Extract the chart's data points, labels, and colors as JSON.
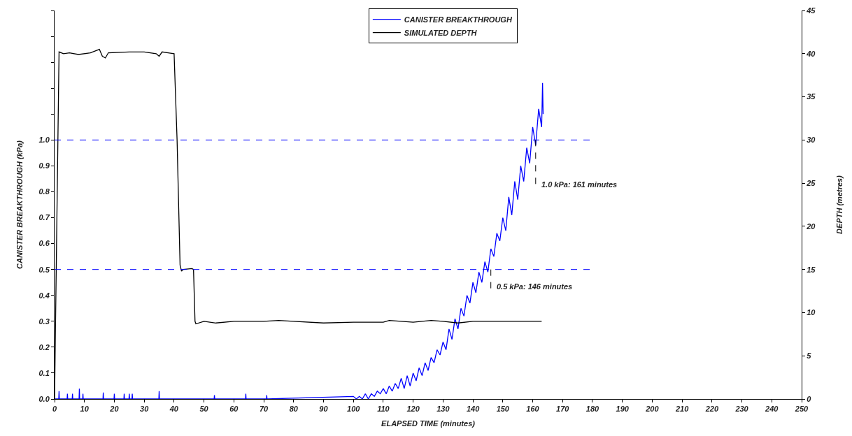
{
  "chart_data": {
    "type": "line",
    "xlabel": "ELAPSED TIME (minutes)",
    "ylabel": "CANISTER BREAKTHROUGH (kPa)",
    "y2label": "DEPTH (metres)",
    "xlim": [
      0,
      250
    ],
    "xticks": [
      0,
      10,
      20,
      30,
      40,
      50,
      60,
      70,
      80,
      90,
      100,
      110,
      120,
      130,
      140,
      150,
      160,
      170,
      180,
      190,
      200,
      210,
      220,
      230,
      240,
      250
    ],
    "ylim": [
      0,
      1.5
    ],
    "yticks": [
      {
        "value": 0,
        "label": "0.0"
      },
      {
        "value": 0.1,
        "label": "0.1"
      },
      {
        "value": 0.2,
        "label": "0.2"
      },
      {
        "value": 0.3,
        "label": "0.3"
      },
      {
        "value": 0.4,
        "label": "0.4"
      },
      {
        "value": 0.5,
        "label": "0.5"
      },
      {
        "value": 0.6,
        "label": "0.6"
      },
      {
        "value": 0.7,
        "label": "0.7"
      },
      {
        "value": 0.8,
        "label": "0.8"
      },
      {
        "value": 0.9,
        "label": "0.9"
      },
      {
        "value": 1,
        "label": "1.0"
      },
      {
        "value": 1.1,
        "label": null
      },
      {
        "value": 1.2,
        "label": null
      },
      {
        "value": 1.3,
        "label": null
      },
      {
        "value": 1.4,
        "label": null
      },
      {
        "value": 1.5,
        "label": null
      }
    ],
    "y2lim": [
      0,
      45
    ],
    "y2ticks": [
      0,
      5,
      10,
      15,
      20,
      25,
      30,
      35,
      40,
      45
    ],
    "grid": false,
    "legend": "top",
    "marker": "none",
    "line_style": "solid",
    "series": [
      {
        "name": "CANISTER BREAKTHROUGH",
        "color": "#0000ff",
        "x": [
          0,
          1.4,
          1.5,
          1.6,
          4.2,
          4.3,
          4.4,
          5.9,
          6,
          6.1,
          8.2,
          8.3,
          8.4,
          9.4,
          9.5,
          9.6,
          16.2,
          16.3,
          16.4,
          19.9,
          20,
          20.1,
          23.2,
          23.3,
          23.4,
          24.9,
          25,
          25.1,
          25.9,
          26,
          26.1,
          34.9,
          35,
          35.1,
          53.4,
          53.5,
          53.6,
          63.9,
          64,
          64.1,
          70.9,
          71,
          71.1,
          100,
          101,
          102,
          103,
          104,
          105,
          106,
          107,
          108,
          109,
          110,
          111,
          112,
          113,
          114,
          115,
          116,
          117,
          118,
          119,
          120,
          121,
          122,
          123,
          124,
          125,
          126,
          127,
          128,
          129,
          130,
          131,
          132,
          133,
          134,
          135,
          136,
          137,
          138,
          139,
          140,
          141,
          142,
          143,
          144,
          145,
          146,
          147,
          148,
          149,
          150,
          151,
          152,
          153,
          154,
          155,
          156,
          157,
          158,
          159,
          160,
          161,
          162,
          163,
          163.3,
          163.5
        ],
        "values": [
          0,
          0,
          0.03,
          0,
          0,
          0.02,
          0,
          0,
          0.02,
          0,
          0,
          0.04,
          0,
          0,
          0.02,
          0,
          0,
          0.025,
          0,
          0,
          0.02,
          0,
          0,
          0.02,
          0,
          0,
          0.02,
          0,
          0,
          0.02,
          0,
          0,
          0.03,
          0,
          0,
          0.015,
          0,
          0,
          0.02,
          0,
          0,
          0.015,
          0,
          0.01,
          0,
          0.01,
          0,
          0.02,
          0,
          0.02,
          0.01,
          0.03,
          0.02,
          0.04,
          0.02,
          0.05,
          0.03,
          0.06,
          0.04,
          0.08,
          0.04,
          0.09,
          0.05,
          0.1,
          0.07,
          0.12,
          0.09,
          0.14,
          0.11,
          0.16,
          0.14,
          0.19,
          0.17,
          0.22,
          0.19,
          0.27,
          0.23,
          0.31,
          0.27,
          0.35,
          0.32,
          0.4,
          0.37,
          0.45,
          0.41,
          0.49,
          0.45,
          0.53,
          0.49,
          0.58,
          0.55,
          0.64,
          0.61,
          0.7,
          0.65,
          0.78,
          0.71,
          0.84,
          0.77,
          0.9,
          0.84,
          0.97,
          0.91,
          1.05,
          0.98,
          1.12,
          1.05,
          1.22,
          1.1
        ]
      },
      {
        "name": "SIMULATED DEPTH",
        "color": "#000000",
        "axis": "y2",
        "x": [
          0,
          1.5,
          3,
          5,
          8,
          12,
          15,
          16,
          17,
          18,
          25,
          30,
          34,
          35,
          36,
          38,
          40,
          41,
          42,
          42.5,
          43,
          46,
          46.5,
          47,
          47.3,
          50,
          54,
          60,
          70,
          75,
          80,
          90,
          100,
          110,
          112,
          120,
          126,
          130,
          135,
          140,
          150,
          163
        ],
        "values": [
          0,
          40.2,
          40,
          40.1,
          39.9,
          40.1,
          40.5,
          39.7,
          39.5,
          40.1,
          40.2,
          40.2,
          40,
          39.7,
          40.2,
          40.1,
          40,
          30,
          15.5,
          14.8,
          15,
          15.1,
          15,
          9,
          8.7,
          9,
          8.8,
          9,
          9,
          9.1,
          9,
          8.8,
          8.9,
          8.9,
          9.1,
          8.9,
          9.1,
          9,
          8.8,
          9,
          9,
          9
        ]
      }
    ],
    "ref_lines": [
      {
        "axis": "y",
        "value": 1,
        "color": "#0000ff",
        "line_style": "dashed"
      },
      {
        "axis": "y",
        "value": 0.5,
        "color": "#0000ff",
        "line_style": "dashed"
      }
    ],
    "annotations": [
      {
        "text": "1.0 kPa: 161 minutes",
        "x": 161,
        "y": 1
      },
      {
        "text": "0.5 kPa: 146 minutes",
        "x": 146,
        "y": 0.5
      }
    ]
  }
}
